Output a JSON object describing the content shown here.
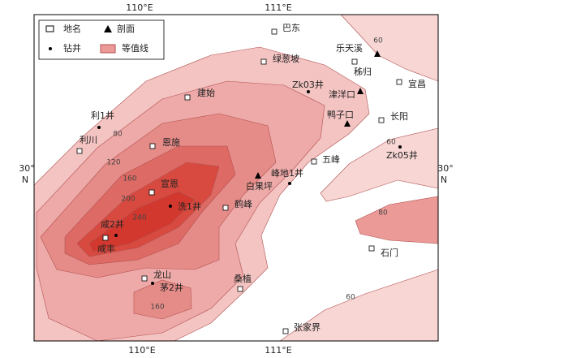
{
  "legend": {
    "items": [
      "地名",
      "剖面",
      "钻井",
      "等值线"
    ]
  },
  "axes": {
    "top": [
      "110°E",
      "111°E"
    ],
    "bottom": [
      "110°E",
      "111°E"
    ],
    "left": [
      "30°",
      "N"
    ],
    "right": [
      "30°",
      "N"
    ]
  },
  "places": [
    "巴东",
    "绿葱坡",
    "秭归",
    "宜昌",
    "建始",
    "利川",
    "恩施",
    "长阳",
    "五峰",
    "宣恩",
    "鹤峰",
    "咸丰",
    "桑植",
    "石门",
    "张家界",
    "龙山"
  ],
  "wells": [
    "Zk03井",
    "利1井",
    "洗1井",
    "咸2井",
    "峰地1井",
    "Zk05井",
    "茅2井"
  ],
  "profiles": [
    "乐天溪",
    "津洋口",
    "鸭子口",
    "白果坪"
  ],
  "contour_labels": [
    60,
    80,
    120,
    160,
    200,
    240,
    60,
    80,
    160,
    60
  ]
}
